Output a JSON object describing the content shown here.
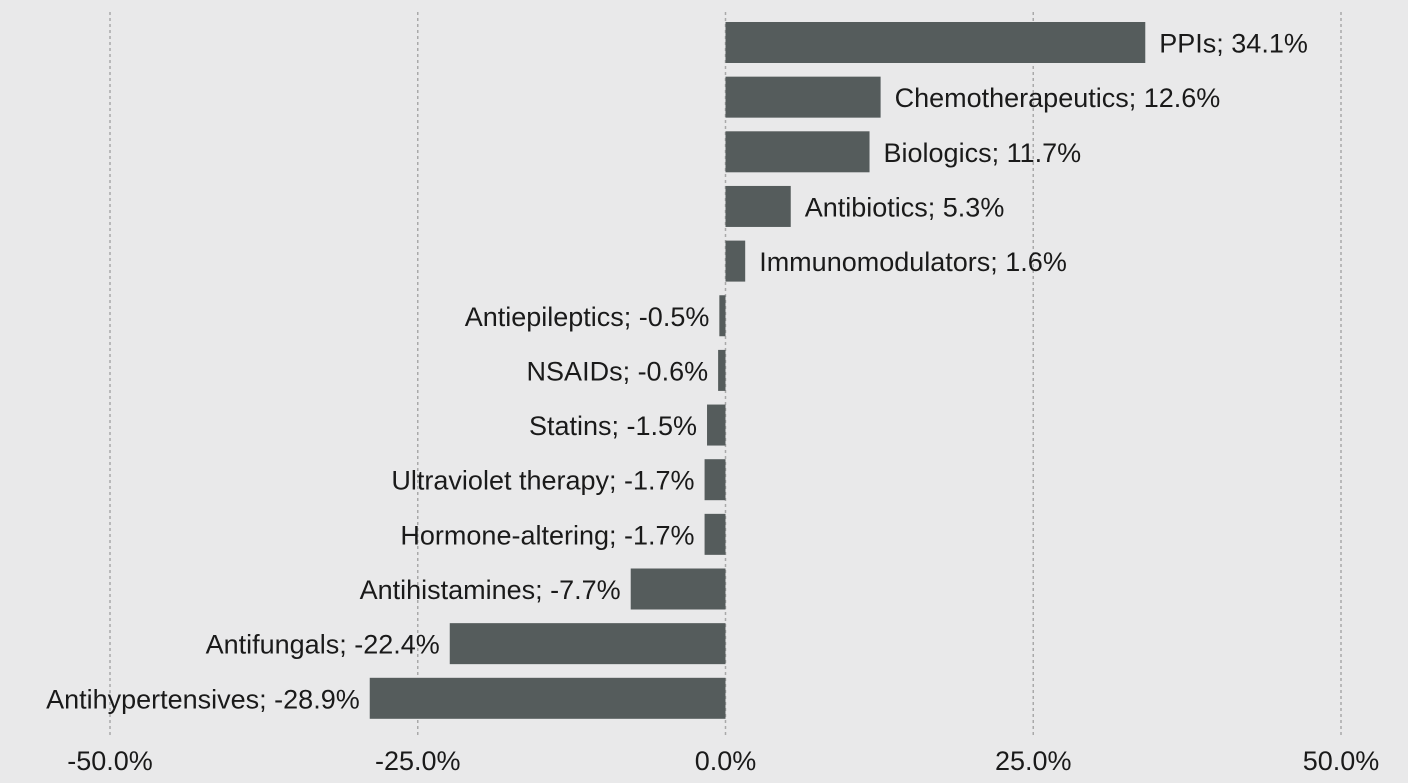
{
  "chart_data": {
    "type": "bar",
    "orientation": "horizontal",
    "title": "",
    "xlabel": "",
    "ylabel": "",
    "xlim": [
      -50,
      50
    ],
    "grid": true,
    "legend": "none",
    "colors": {
      "bar": "#555c5c",
      "background": "#e9e9ea",
      "gridline": "#a9a9a9"
    },
    "x_ticks": [
      -50,
      -25,
      0,
      25,
      50
    ],
    "x_tick_labels": [
      "-50.0%",
      "-25.0%",
      "0.0%",
      "25.0%",
      "50.0%"
    ],
    "categories": [
      "PPIs",
      "Chemotherapeutics",
      "Biologics",
      "Antibiotics",
      "Immunomodulators",
      "Antiepileptics",
      "NSAIDs",
      "Statins",
      "Ultraviolet therapy",
      "Hormone-altering",
      "Antihistamines",
      "Antifungals",
      "Antihypertensives"
    ],
    "values": [
      34.1,
      12.6,
      11.7,
      5.3,
      1.6,
      -0.5,
      -0.6,
      -1.5,
      -1.7,
      -1.7,
      -7.7,
      -22.4,
      -28.9
    ],
    "data_labels": [
      "PPIs; 34.1%",
      "Chemotherapeutics; 12.6%",
      "Biologics; 11.7%",
      "Antibiotics; 5.3%",
      "Immunomodulators; 1.6%",
      "Antiepileptics; -0.5%",
      "NSAIDs; -0.6%",
      "Statins; -1.5%",
      "Ultraviolet therapy; -1.7%",
      "Hormone-altering; -1.7%",
      "Antihistamines; -7.7%",
      "Antifungals; -22.4%",
      "Antihypertensives; -28.9%"
    ]
  }
}
